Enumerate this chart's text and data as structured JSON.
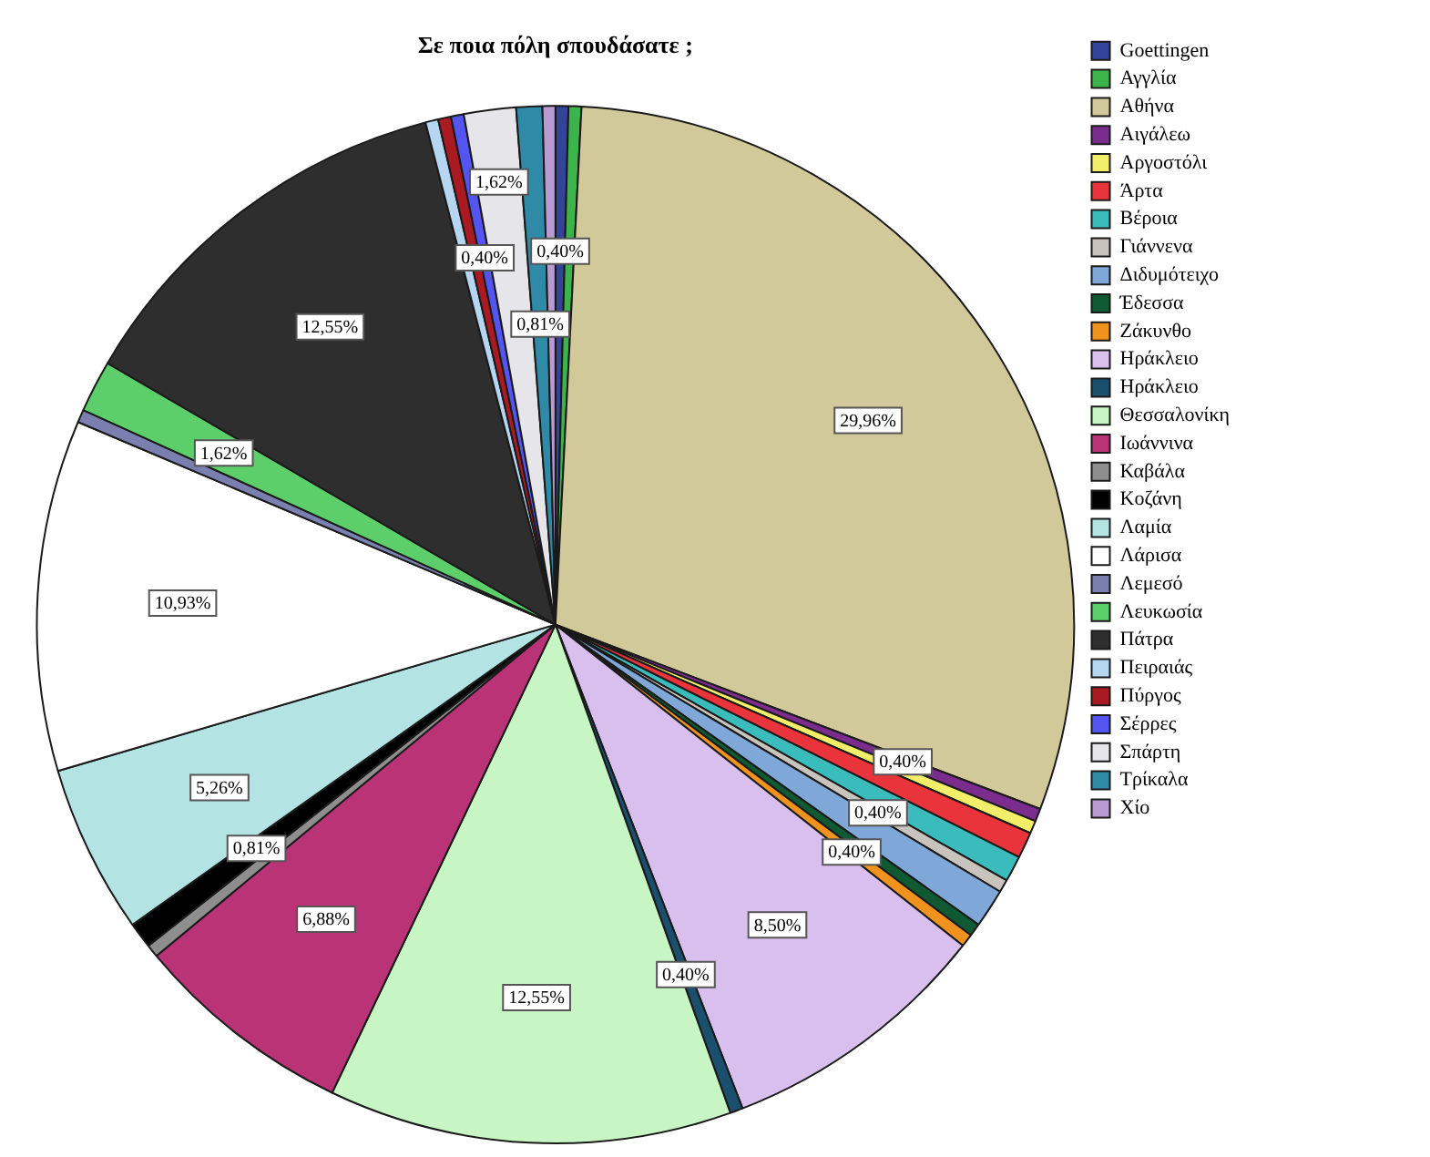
{
  "chart_data": {
    "type": "pie",
    "title": "Σε ποια πόλη σπουδάσατε ;",
    "categories": [
      "Goettingen",
      "Αγγλία",
      "Αθήνα",
      "Αιγάλεω",
      "Αργοστόλι",
      "Άρτα",
      "Βέροια",
      "Γιάννενα",
      "Διδυμότειχο",
      "Έδεσσα",
      "Ζάκυνθο",
      "Ηράκλειο",
      "Ηράκλειο",
      "Θεσσαλονίκη",
      "Ιωάννινα",
      "Καβάλα",
      "Κοζάνη",
      "Λαμία",
      "Λάρισα",
      "Λεμεσό",
      "Λευκωσία",
      "Πάτρα",
      "Πειραιάς",
      "Πύργος",
      "Σέρρες",
      "Σπάρτη",
      "Τρίκαλα",
      "Χίο"
    ],
    "values": [
      0.4,
      0.4,
      29.96,
      0.4,
      0.4,
      0.81,
      0.81,
      0.4,
      1.21,
      0.4,
      0.4,
      8.5,
      0.4,
      12.55,
      6.88,
      0.4,
      0.81,
      5.26,
      10.93,
      0.4,
      1.62,
      12.55,
      0.4,
      0.4,
      0.4,
      1.62,
      0.81,
      0.4
    ],
    "colors": [
      "#34449a",
      "#3cb44b",
      "#d2c99a",
      "#7b2d8e",
      "#f3ee6a",
      "#e8343a",
      "#3bbcbc",
      "#c8c3bd",
      "#7fa7d8",
      "#0f5a32",
      "#f0921e",
      "#d8bfee",
      "#1b4f6e",
      "#c7f5c3",
      "#bb3377",
      "#8e8e8e",
      "#000000",
      "#b3e3e3",
      "#ffffff",
      "#7a7fb0",
      "#5ccf6a",
      "#2e2e2e",
      "#b5d5f0",
      "#aa1a22",
      "#5454f0",
      "#e6e6ea",
      "#2f8aa8",
      "#b89bd2"
    ],
    "value_labels": [
      "0,40%",
      null,
      "29,96%",
      "0,40%",
      null,
      null,
      null,
      "0,40%",
      null,
      null,
      "0,40%",
      "8,50%",
      "0,40%",
      "12,55%",
      "6,88%",
      null,
      "0,81%",
      "5,26%",
      "10,93%",
      null,
      "1,62%",
      "12,55%",
      null,
      null,
      "0,40%",
      "1,62%",
      "0,81%",
      null
    ],
    "legend": "top right"
  }
}
